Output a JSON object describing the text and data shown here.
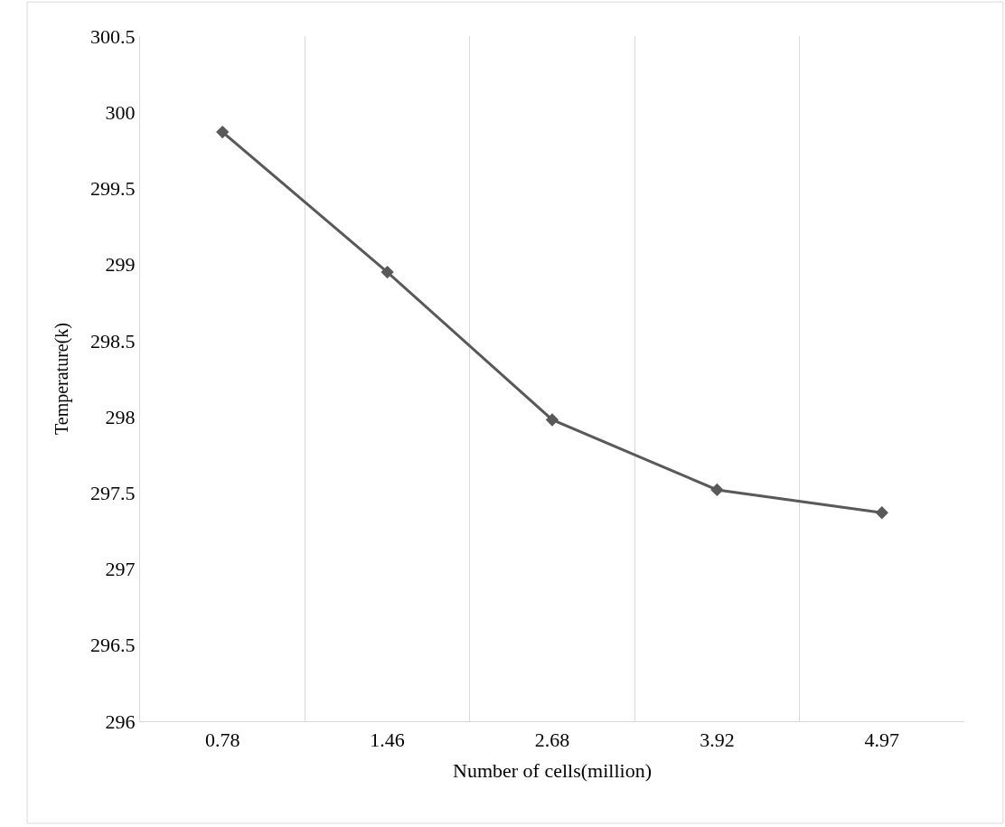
{
  "chart_data": {
    "type": "line",
    "xlabel": "Number of cells(million)",
    "ylabel": "Temperature(k)",
    "categories": [
      "0.78",
      "1.46",
      "2.68",
      "3.92",
      "4.97"
    ],
    "series": [
      {
        "color": "#595959",
        "values": [
          299.87,
          298.95,
          297.98,
          297.52,
          297.37
        ]
      }
    ],
    "ylim": [
      296,
      300.5
    ],
    "yticks": [
      296,
      296.5,
      297,
      297.5,
      298,
      298.5,
      299,
      299.5,
      300,
      300.5
    ],
    "grid": "x",
    "marker": "diamond",
    "line_style": "solid",
    "legend": false
  }
}
